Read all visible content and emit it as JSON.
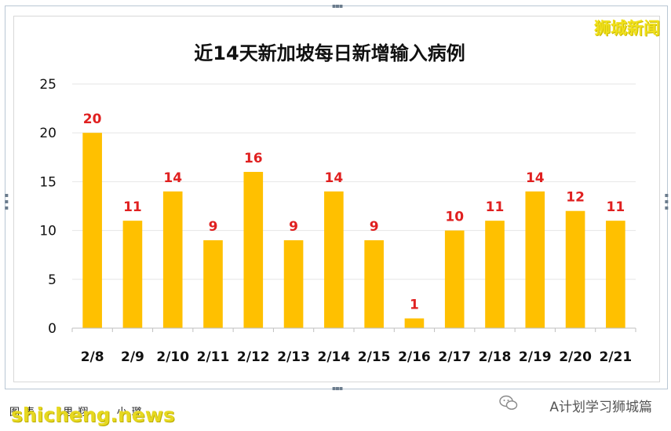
{
  "chart_data": {
    "type": "bar",
    "title": "近14天新加坡每日新增输入病例",
    "categories": [
      "2/8",
      "2/9",
      "2/10",
      "2/11",
      "2/12",
      "2/13",
      "2/14",
      "2/15",
      "2/16",
      "2/17",
      "2/18",
      "2/19",
      "2/20",
      "2/21"
    ],
    "values": [
      20,
      11,
      14,
      9,
      16,
      9,
      14,
      9,
      1,
      10,
      11,
      14,
      12,
      11
    ],
    "ylim": [
      0,
      25
    ],
    "yticks": [
      0,
      5,
      10,
      15,
      20,
      25
    ],
    "xlabel": "",
    "ylabel": "",
    "grid": true,
    "bar_color": "#ffc000",
    "label_color": "#e02020"
  },
  "watermark": {
    "top_right": "狮城新闻",
    "site": "shicheng.news"
  },
  "footer": {
    "left_text": "图表 · 思翔 · 小璐",
    "wechat_label": "A计划学习狮城篇"
  }
}
